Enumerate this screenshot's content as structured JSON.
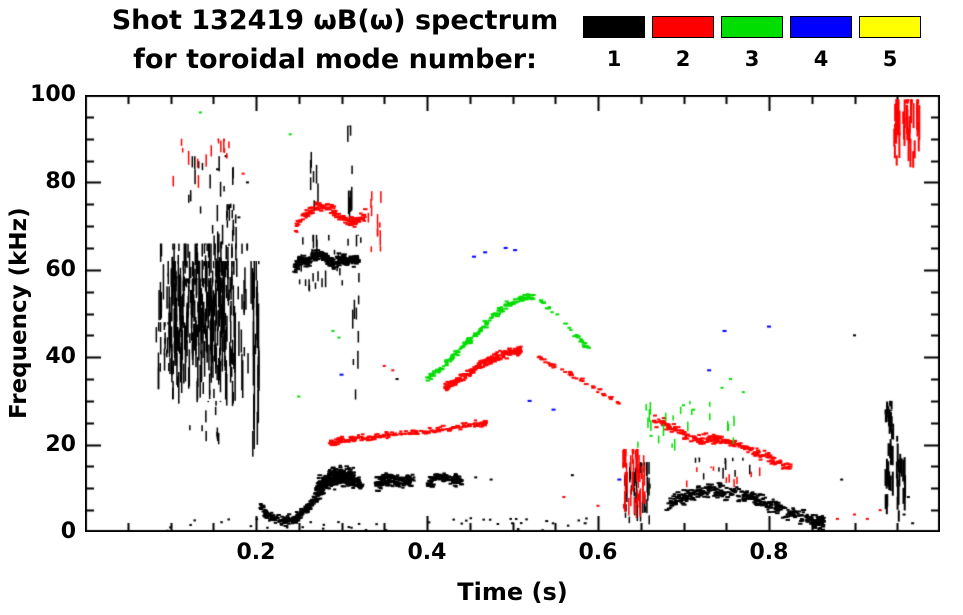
{
  "chart_data": {
    "type": "scatter",
    "title": "Shot 132419 ωB(ω) spectrum",
    "subtitle": "for toroidal mode number:",
    "xlabel": "Time (s)",
    "ylabel": "Frequency (kHz)",
    "xlim": [
      0.0,
      1.0
    ],
    "ylim": [
      0,
      100
    ],
    "x_major": 0.2,
    "x_minor": 0.05,
    "y_major": 20,
    "y_minor": 5,
    "grid": false,
    "legend_position": "top-right",
    "xticks": [
      {
        "v": 0.2,
        "label": "0.2"
      },
      {
        "v": 0.4,
        "label": "0.4"
      },
      {
        "v": 0.6,
        "label": "0.6"
      },
      {
        "v": 0.8,
        "label": "0.8"
      }
    ],
    "yticks": [
      {
        "v": 0,
        "label": "0"
      },
      {
        "v": 20,
        "label": "20"
      },
      {
        "v": 40,
        "label": "40"
      },
      {
        "v": 60,
        "label": "60"
      },
      {
        "v": 80,
        "label": "80"
      },
      {
        "v": 100,
        "label": "100"
      }
    ],
    "legend": [
      {
        "mode": 1,
        "label": "1",
        "color": "#000000"
      },
      {
        "mode": 2,
        "label": "2",
        "color": "#ff0000"
      },
      {
        "mode": 3,
        "label": "3",
        "color": "#00dd00"
      },
      {
        "mode": 4,
        "label": "4",
        "color": "#0000ff"
      },
      {
        "mode": 5,
        "label": "5",
        "color": "#ffff00"
      }
    ],
    "clusters": [
      {
        "mode": 1,
        "kind": "streaks",
        "t": [
          0.085,
          0.19
        ],
        "f": [
          28,
          66
        ],
        "h": [
          2,
          9
        ],
        "w": 1.5,
        "n": 170
      },
      {
        "mode": 1,
        "kind": "streaks",
        "t": [
          0.095,
          0.175
        ],
        "f": [
          33,
          62
        ],
        "h": [
          2,
          8
        ],
        "w": 1.5,
        "n": 160
      },
      {
        "mode": 1,
        "kind": "streaks",
        "t": [
          0.1,
          0.16
        ],
        "f": [
          40,
          58
        ],
        "h": [
          2,
          6
        ],
        "w": 1.5,
        "n": 90
      },
      {
        "mode": 1,
        "kind": "streaks",
        "t": [
          0.15,
          0.178
        ],
        "f": [
          58,
          75
        ],
        "h": [
          1,
          5
        ],
        "w": 1.5,
        "n": 18
      },
      {
        "mode": 1,
        "kind": "streaks",
        "t": [
          0.12,
          0.175
        ],
        "f": [
          66,
          86
        ],
        "h": [
          1,
          4
        ],
        "w": 1.5,
        "n": 20
      },
      {
        "mode": 1,
        "kind": "streaks",
        "t": [
          0.12,
          0.16
        ],
        "f": [
          20,
          30
        ],
        "h": [
          1,
          3
        ],
        "w": 1.5,
        "n": 12
      },
      {
        "mode": 1,
        "kind": "streaks",
        "t": [
          0.08,
          0.1
        ],
        "f": [
          36,
          48
        ],
        "h": [
          1,
          4
        ],
        "w": 1.5,
        "n": 16
      },
      {
        "mode": 1,
        "kind": "streaks",
        "t": [
          0.193,
          0.203
        ],
        "f": [
          15,
          62
        ],
        "h": [
          4,
          16
        ],
        "w": 1.5,
        "n": 26
      },
      {
        "mode": 1,
        "kind": "trace",
        "path": [
          [
            0.205,
            6
          ],
          [
            0.215,
            3.5
          ],
          [
            0.23,
            2.5
          ],
          [
            0.245,
            3
          ],
          [
            0.258,
            5
          ],
          [
            0.27,
            8
          ],
          [
            0.283,
            11
          ],
          [
            0.296,
            12.5
          ],
          [
            0.31,
            12
          ],
          [
            0.325,
            11
          ]
        ],
        "jitter": 1.6,
        "n": 320,
        "dw": 3,
        "dh": 2
      },
      {
        "mode": 1,
        "kind": "trace",
        "path": [
          [
            0.27,
            9
          ],
          [
            0.285,
            12
          ],
          [
            0.3,
            13
          ],
          [
            0.315,
            12
          ]
        ],
        "jitter": 3.5,
        "n": 280,
        "dw": 3,
        "dh": 2
      },
      {
        "mode": 1,
        "kind": "trace",
        "path": [
          [
            0.34,
            11
          ],
          [
            0.355,
            12
          ],
          [
            0.37,
            11.5
          ],
          [
            0.385,
            12
          ]
        ],
        "jitter": 2.2,
        "n": 150,
        "dw": 3,
        "dh": 2
      },
      {
        "mode": 1,
        "kind": "trace",
        "path": [
          [
            0.4,
            11
          ],
          [
            0.415,
            12.5
          ],
          [
            0.43,
            12
          ],
          [
            0.441,
            11.5
          ]
        ],
        "jitter": 1.8,
        "n": 110,
        "dw": 3,
        "dh": 2
      },
      {
        "mode": 1,
        "kind": "trace",
        "path": [
          [
            0.245,
            60
          ],
          [
            0.252,
            62.5
          ],
          [
            0.26,
            61.5
          ],
          [
            0.27,
            63.5
          ],
          [
            0.28,
            63
          ],
          [
            0.29,
            61.5
          ],
          [
            0.3,
            62.5
          ],
          [
            0.31,
            62
          ],
          [
            0.32,
            62.5
          ]
        ],
        "jitter": 1.8,
        "n": 300,
        "dw": 3,
        "dh": 2
      },
      {
        "mode": 1,
        "kind": "streaks",
        "t": [
          0.248,
          0.322
        ],
        "f": [
          55,
          68
        ],
        "h": [
          1,
          4
        ],
        "w": 1.5,
        "n": 28
      },
      {
        "mode": 1,
        "kind": "streaks",
        "t": [
          0.263,
          0.272
        ],
        "f": [
          70,
          87
        ],
        "h": [
          1,
          5
        ],
        "w": 1.5,
        "n": 7
      },
      {
        "mode": 1,
        "kind": "streaks",
        "t": [
          0.305,
          0.318
        ],
        "f": [
          68,
          93
        ],
        "h": [
          1,
          6
        ],
        "w": 1.5,
        "n": 10
      },
      {
        "mode": 1,
        "kind": "streaks",
        "t": [
          0.31,
          0.32
        ],
        "f": [
          30,
          55
        ],
        "h": [
          1,
          5
        ],
        "w": 1.5,
        "n": 8
      },
      {
        "mode": 1,
        "kind": "blob",
        "t": [
          0.09,
          0.6
        ],
        "f": [
          0.5,
          3.5
        ],
        "n": 40,
        "dw": 2.5,
        "dh": 2
      },
      {
        "mode": 1,
        "kind": "streaks",
        "t": [
          0.625,
          0.66
        ],
        "f": [
          1,
          16
        ],
        "h": [
          1,
          5
        ],
        "w": 1.5,
        "n": 40
      },
      {
        "mode": 1,
        "kind": "trace",
        "path": [
          [
            0.68,
            6
          ],
          [
            0.7,
            8
          ],
          [
            0.72,
            9.5
          ],
          [
            0.745,
            9.5
          ],
          [
            0.77,
            8.5
          ],
          [
            0.79,
            7
          ],
          [
            0.81,
            5.5
          ],
          [
            0.83,
            4
          ],
          [
            0.85,
            2.5
          ],
          [
            0.865,
            2
          ]
        ],
        "jitter": 2.4,
        "n": 380,
        "dw": 3,
        "dh": 2
      },
      {
        "mode": 1,
        "kind": "streaks",
        "t": [
          0.7,
          0.78
        ],
        "f": [
          12,
          17
        ],
        "h": [
          1,
          3
        ],
        "w": 1.5,
        "n": 12
      },
      {
        "mode": 1,
        "kind": "streaks",
        "t": [
          0.935,
          0.945
        ],
        "f": [
          4,
          28
        ],
        "h": [
          2,
          6
        ],
        "w": 2,
        "n": 24
      },
      {
        "mode": 1,
        "kind": "streaks",
        "t": [
          0.948,
          0.958
        ],
        "f": [
          2,
          22
        ],
        "h": [
          2,
          6
        ],
        "w": 2,
        "n": 20
      },
      {
        "mode": 1,
        "kind": "streaks",
        "t": [
          0.934,
          0.944
        ],
        "f": [
          24,
          30
        ],
        "h": [
          1,
          3
        ],
        "w": 2,
        "n": 10
      },
      {
        "mode": 1,
        "kind": "points",
        "pts": [
          [
            0.365,
            35
          ],
          [
            0.9,
            45
          ],
          [
            0.885,
            12
          ],
          [
            0.57,
            13
          ],
          [
            0.475,
            12
          ],
          [
            0.457,
            12.5
          ],
          [
            0.5,
            2
          ],
          [
            0.54,
            2.5
          ],
          [
            0.585,
            2
          ],
          [
            0.155,
            83
          ],
          [
            0.165,
            86
          ],
          [
            0.18,
            72
          ],
          [
            0.19,
            80
          ],
          [
            0.958,
            4
          ],
          [
            0.963,
            8
          ],
          [
            0.968,
            2
          ]
        ],
        "dw": 3,
        "dh": 2
      },
      {
        "mode": 2,
        "kind": "streaks",
        "t": [
          0.1,
          0.18
        ],
        "f": [
          78,
          90
        ],
        "h": [
          1,
          4
        ],
        "w": 1.5,
        "n": 16
      },
      {
        "mode": 2,
        "kind": "trace",
        "path": [
          [
            0.245,
            69
          ],
          [
            0.258,
            72.5
          ],
          [
            0.27,
            74.5
          ],
          [
            0.285,
            74
          ],
          [
            0.3,
            72
          ],
          [
            0.315,
            71
          ],
          [
            0.328,
            72.5
          ]
        ],
        "jitter": 1.6,
        "n": 150,
        "dw": 3,
        "dh": 2
      },
      {
        "mode": 2,
        "kind": "streaks",
        "t": [
          0.33,
          0.347
        ],
        "f": [
          64,
          78
        ],
        "h": [
          1,
          4
        ],
        "w": 1.5,
        "n": 12
      },
      {
        "mode": 2,
        "kind": "trace",
        "path": [
          [
            0.285,
            20
          ],
          [
            0.3,
            21
          ],
          [
            0.32,
            21.5
          ],
          [
            0.345,
            22
          ],
          [
            0.37,
            22.5
          ],
          [
            0.4,
            23
          ],
          [
            0.43,
            24
          ],
          [
            0.455,
            24.5
          ],
          [
            0.47,
            25
          ]
        ],
        "jitter": 1.1,
        "n": 210,
        "dw": 3,
        "dh": 2
      },
      {
        "mode": 2,
        "kind": "trace",
        "path": [
          [
            0.42,
            33
          ],
          [
            0.435,
            34.5
          ],
          [
            0.45,
            36.5
          ],
          [
            0.465,
            38.5
          ],
          [
            0.48,
            40
          ],
          [
            0.495,
            41
          ],
          [
            0.51,
            41.5
          ]
        ],
        "jitter": 1.4,
        "n": 210,
        "dw": 3,
        "dh": 2
      },
      {
        "mode": 2,
        "kind": "trace",
        "path": [
          [
            0.53,
            40
          ],
          [
            0.55,
            38
          ],
          [
            0.575,
            35.5
          ],
          [
            0.6,
            32.5
          ],
          [
            0.625,
            29.5
          ]
        ],
        "jitter": 0.9,
        "n": 44,
        "dw": 3,
        "dh": 2
      },
      {
        "mode": 2,
        "kind": "streaks",
        "t": [
          0.628,
          0.655
        ],
        "f": [
          3,
          19
        ],
        "h": [
          1,
          5
        ],
        "w": 1.5,
        "n": 55
      },
      {
        "mode": 2,
        "kind": "trace",
        "path": [
          [
            0.665,
            26
          ],
          [
            0.685,
            24
          ],
          [
            0.705,
            22
          ],
          [
            0.725,
            21
          ],
          [
            0.745,
            21.5
          ],
          [
            0.765,
            20
          ],
          [
            0.785,
            18
          ],
          [
            0.805,
            16.5
          ],
          [
            0.825,
            15
          ]
        ],
        "jitter": 1.7,
        "n": 240,
        "dw": 3,
        "dh": 2
      },
      {
        "mode": 2,
        "kind": "streaks",
        "t": [
          0.7,
          0.8
        ],
        "f": [
          10,
          15
        ],
        "h": [
          1,
          2
        ],
        "w": 1.5,
        "n": 10
      },
      {
        "mode": 2,
        "kind": "streaks",
        "t": [
          0.945,
          0.975
        ],
        "f": [
          82,
          99
        ],
        "h": [
          2,
          8
        ],
        "w": 2,
        "n": 46
      },
      {
        "mode": 2,
        "kind": "points",
        "pts": [
          [
            0.35,
            38
          ],
          [
            0.36,
            37
          ],
          [
            0.88,
            3
          ],
          [
            0.9,
            4
          ],
          [
            0.915,
            3
          ],
          [
            0.93,
            5
          ],
          [
            0.56,
            8
          ],
          [
            0.6,
            6
          ],
          [
            0.185,
            82
          ]
        ],
        "dw": 3,
        "dh": 2
      },
      {
        "mode": 3,
        "kind": "trace",
        "path": [
          [
            0.4,
            35
          ],
          [
            0.42,
            38
          ],
          [
            0.44,
            42
          ],
          [
            0.46,
            46
          ],
          [
            0.478,
            49.5
          ],
          [
            0.495,
            52
          ],
          [
            0.51,
            53.5
          ],
          [
            0.525,
            54
          ]
        ],
        "jitter": 1.2,
        "n": 170,
        "dw": 3,
        "dh": 2
      },
      {
        "mode": 3,
        "kind": "trace",
        "path": [
          [
            0.53,
            53.5
          ],
          [
            0.55,
            50
          ],
          [
            0.57,
            46
          ],
          [
            0.59,
            41.5
          ]
        ],
        "jitter": 0.9,
        "n": 26,
        "dw": 3,
        "dh": 2
      },
      {
        "mode": 3,
        "kind": "streaks",
        "t": [
          0.64,
          0.76
        ],
        "f": [
          18,
          30
        ],
        "h": [
          1,
          3
        ],
        "w": 1.5,
        "n": 22
      },
      {
        "mode": 3,
        "kind": "points",
        "pts": [
          [
            0.135,
            96
          ],
          [
            0.29,
            46
          ],
          [
            0.297,
            44.5
          ],
          [
            0.25,
            31
          ],
          [
            0.7,
            29
          ],
          [
            0.712,
            28
          ],
          [
            0.745,
            33
          ],
          [
            0.755,
            35
          ],
          [
            0.77,
            32
          ],
          [
            0.662,
            22
          ],
          [
            0.24,
            91
          ]
        ],
        "dw": 3,
        "dh": 2
      },
      {
        "mode": 4,
        "kind": "points",
        "pts": [
          [
            0.455,
            63
          ],
          [
            0.468,
            64
          ],
          [
            0.492,
            65
          ],
          [
            0.503,
            64.5
          ],
          [
            0.52,
            30
          ],
          [
            0.548,
            28
          ],
          [
            0.748,
            46
          ],
          [
            0.73,
            37
          ],
          [
            0.8,
            47
          ],
          [
            0.3,
            36
          ],
          [
            0.625,
            12
          ]
        ],
        "dw": 4,
        "dh": 2
      },
      {
        "mode": 5,
        "kind": "points",
        "pts": [],
        "dw": 3,
        "dh": 2
      }
    ]
  }
}
